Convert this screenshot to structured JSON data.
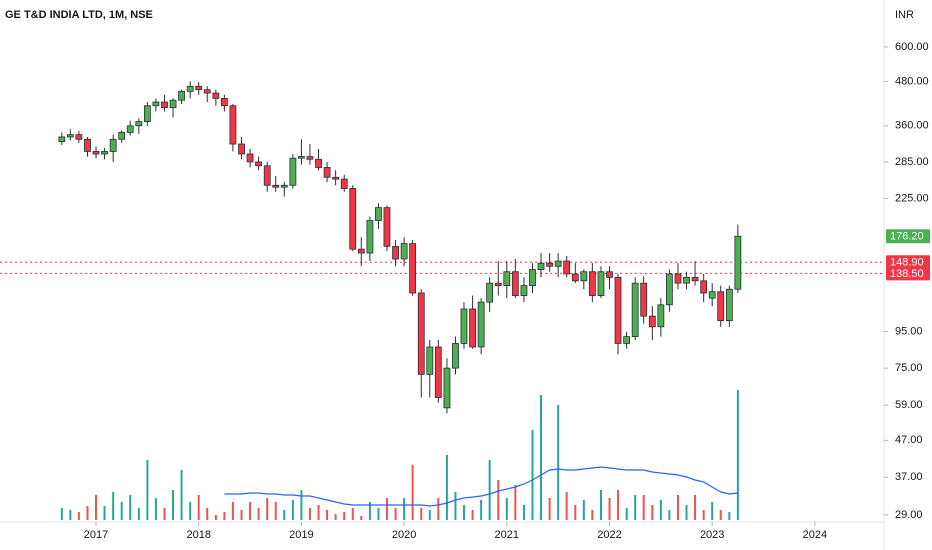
{
  "chart_data": {
    "type": "candlestick",
    "title": "GE T&D INDIA LTD, 1M, NSE",
    "currency": "INR",
    "log_scale": true,
    "x": [
      2016.667,
      2016.75,
      2016.833,
      2016.917,
      2017,
      2017.083,
      2017.167,
      2017.25,
      2017.333,
      2017.417,
      2017.5,
      2017.583,
      2017.667,
      2017.75,
      2017.833,
      2017.917,
      2018,
      2018.083,
      2018.167,
      2018.25,
      2018.333,
      2018.417,
      2018.5,
      2018.583,
      2018.667,
      2018.75,
      2018.833,
      2018.917,
      2019,
      2019.083,
      2019.167,
      2019.25,
      2019.333,
      2019.417,
      2019.5,
      2019.583,
      2019.667,
      2019.75,
      2019.833,
      2019.917,
      2020,
      2020.083,
      2020.167,
      2020.25,
      2020.333,
      2020.417,
      2020.5,
      2020.583,
      2020.667,
      2020.75,
      2020.833,
      2020.917,
      2021,
      2021.083,
      2021.167,
      2021.25,
      2021.333,
      2021.417,
      2021.5,
      2021.583,
      2021.667,
      2021.75,
      2021.833,
      2021.917,
      2022,
      2022.083,
      2022.167,
      2022.25,
      2022.333,
      2022.417,
      2022.5,
      2022.583,
      2022.667,
      2022.75,
      2022.833,
      2022.917,
      2023,
      2023.083,
      2023.167,
      2023.25
    ],
    "open": [
      325,
      335,
      340,
      330,
      305,
      300,
      305,
      330,
      345,
      360,
      370,
      410,
      420,
      405,
      425,
      450,
      465,
      455,
      445,
      430,
      410,
      320,
      300,
      285,
      278,
      245,
      242,
      245,
      292,
      295,
      290,
      275,
      258,
      255,
      240,
      162,
      158,
      195,
      212,
      165,
      152,
      168,
      122,
      72,
      86,
      58,
      75,
      88,
      110,
      86,
      115,
      130,
      128,
      140,
      120,
      128,
      142,
      148,
      145,
      150,
      138,
      132,
      140,
      120,
      140,
      135,
      88,
      92,
      130,
      105,
      98,
      113,
      138,
      130,
      135,
      132,
      118,
      123,
      102,
      125
    ],
    "high": [
      345,
      352,
      348,
      335,
      315,
      312,
      340,
      350,
      372,
      378,
      420,
      430,
      440,
      430,
      455,
      480,
      478,
      465,
      455,
      440,
      415,
      335,
      310,
      295,
      285,
      260,
      250,
      300,
      330,
      320,
      310,
      285,
      270,
      262,
      245,
      175,
      200,
      218,
      215,
      172,
      175,
      172,
      125,
      90,
      90,
      80,
      92,
      115,
      120,
      118,
      135,
      150,
      150,
      152,
      135,
      148,
      158,
      158,
      158,
      155,
      148,
      142,
      148,
      145,
      145,
      138,
      95,
      135,
      136,
      112,
      118,
      142,
      148,
      140,
      150,
      138,
      130,
      128,
      128,
      190
    ],
    "low": [
      318,
      328,
      322,
      295,
      292,
      290,
      285,
      322,
      338,
      342,
      360,
      395,
      395,
      380,
      415,
      430,
      440,
      420,
      410,
      395,
      305,
      290,
      275,
      270,
      235,
      235,
      228,
      240,
      280,
      280,
      270,
      250,
      245,
      235,
      160,
      145,
      150,
      185,
      160,
      145,
      145,
      120,
      62,
      62,
      60,
      56,
      72,
      85,
      85,
      82,
      108,
      120,
      118,
      118,
      115,
      122,
      135,
      140,
      135,
      135,
      130,
      125,
      115,
      118,
      125,
      82,
      85,
      90,
      100,
      90,
      92,
      108,
      125,
      125,
      128,
      115,
      112,
      98,
      98,
      122
    ],
    "close": [
      335,
      340,
      330,
      305,
      300,
      305,
      330,
      345,
      360,
      370,
      410,
      420,
      405,
      425,
      450,
      465,
      455,
      445,
      430,
      410,
      320,
      300,
      285,
      278,
      245,
      242,
      245,
      292,
      295,
      290,
      275,
      258,
      255,
      240,
      162,
      158,
      195,
      212,
      165,
      152,
      168,
      122,
      72,
      86,
      62,
      75,
      88,
      110,
      86,
      115,
      130,
      128,
      140,
      120,
      128,
      142,
      148,
      145,
      150,
      138,
      132,
      140,
      120,
      140,
      135,
      88,
      92,
      130,
      105,
      98,
      113,
      138,
      130,
      135,
      132,
      122,
      123,
      102,
      125,
      176.2
    ],
    "volume": [
      12,
      10,
      8,
      14,
      25,
      14,
      28,
      18,
      25,
      12,
      60,
      22,
      12,
      30,
      50,
      18,
      25,
      12,
      5,
      8,
      18,
      10,
      18,
      12,
      22,
      18,
      10,
      20,
      30,
      12,
      15,
      10,
      6,
      8,
      12,
      4,
      18,
      12,
      22,
      12,
      22,
      55,
      12,
      10,
      22,
      65,
      28,
      15,
      10,
      20,
      60,
      40,
      22,
      35,
      15,
      90,
      125,
      22,
      115,
      28,
      15,
      20,
      10,
      30,
      22,
      30,
      12,
      25,
      25,
      15,
      20,
      10,
      25,
      15,
      25,
      10,
      18,
      10,
      8,
      130
    ],
    "volume_ma": {
      "color": "#2962ff",
      "values": [
        null,
        null,
        null,
        null,
        null,
        null,
        null,
        null,
        null,
        null,
        null,
        null,
        null,
        null,
        null,
        null,
        null,
        null,
        null,
        26,
        26,
        26,
        27,
        27,
        26,
        26,
        25,
        25,
        24,
        24,
        22,
        20,
        18,
        16,
        15,
        15,
        15,
        15,
        15,
        15,
        15,
        15,
        15,
        14,
        15,
        17,
        20,
        22,
        23,
        24,
        26,
        29,
        31,
        33,
        36,
        40,
        45,
        50,
        51,
        50,
        50,
        51,
        52,
        53,
        52,
        51,
        50,
        50,
        50,
        48,
        47,
        46,
        45,
        43,
        40,
        38,
        33,
        28,
        26,
        27
      ]
    },
    "up_color": "#4caf50",
    "down_color": "#f23645",
    "volume_up_color": "#26a69a",
    "volume_down_color": "#ef5350",
    "xlim": [
      2016.065,
      2024.634
    ],
    "xticks": [
      2017,
      2018,
      2019,
      2020,
      2021,
      2022,
      2023,
      2024
    ],
    "ylim": [
      27.7,
      813
    ],
    "yticks": [
      {
        "value": 600,
        "label": "600.00"
      },
      {
        "value": 480,
        "label": "480.00"
      },
      {
        "value": 360,
        "label": "360.00"
      },
      {
        "value": 285,
        "label": "285.00"
      },
      {
        "value": 225,
        "label": "225.00"
      },
      {
        "value": 95,
        "label": "95.00"
      },
      {
        "value": 75,
        "label": "75.00"
      },
      {
        "value": 59,
        "label": "59.00"
      },
      {
        "value": 47,
        "label": "47.00"
      },
      {
        "value": 37,
        "label": "37.00"
      },
      {
        "value": 29,
        "label": "29.00"
      }
    ],
    "price_lines": [
      {
        "value": 148.9,
        "label": "148.90",
        "color": "#f23645"
      },
      {
        "value": 138.5,
        "label": "138.50",
        "color": "#f23645"
      }
    ],
    "last_price": {
      "value": 176.2,
      "label": "176.20",
      "color": "#4caf50"
    }
  }
}
